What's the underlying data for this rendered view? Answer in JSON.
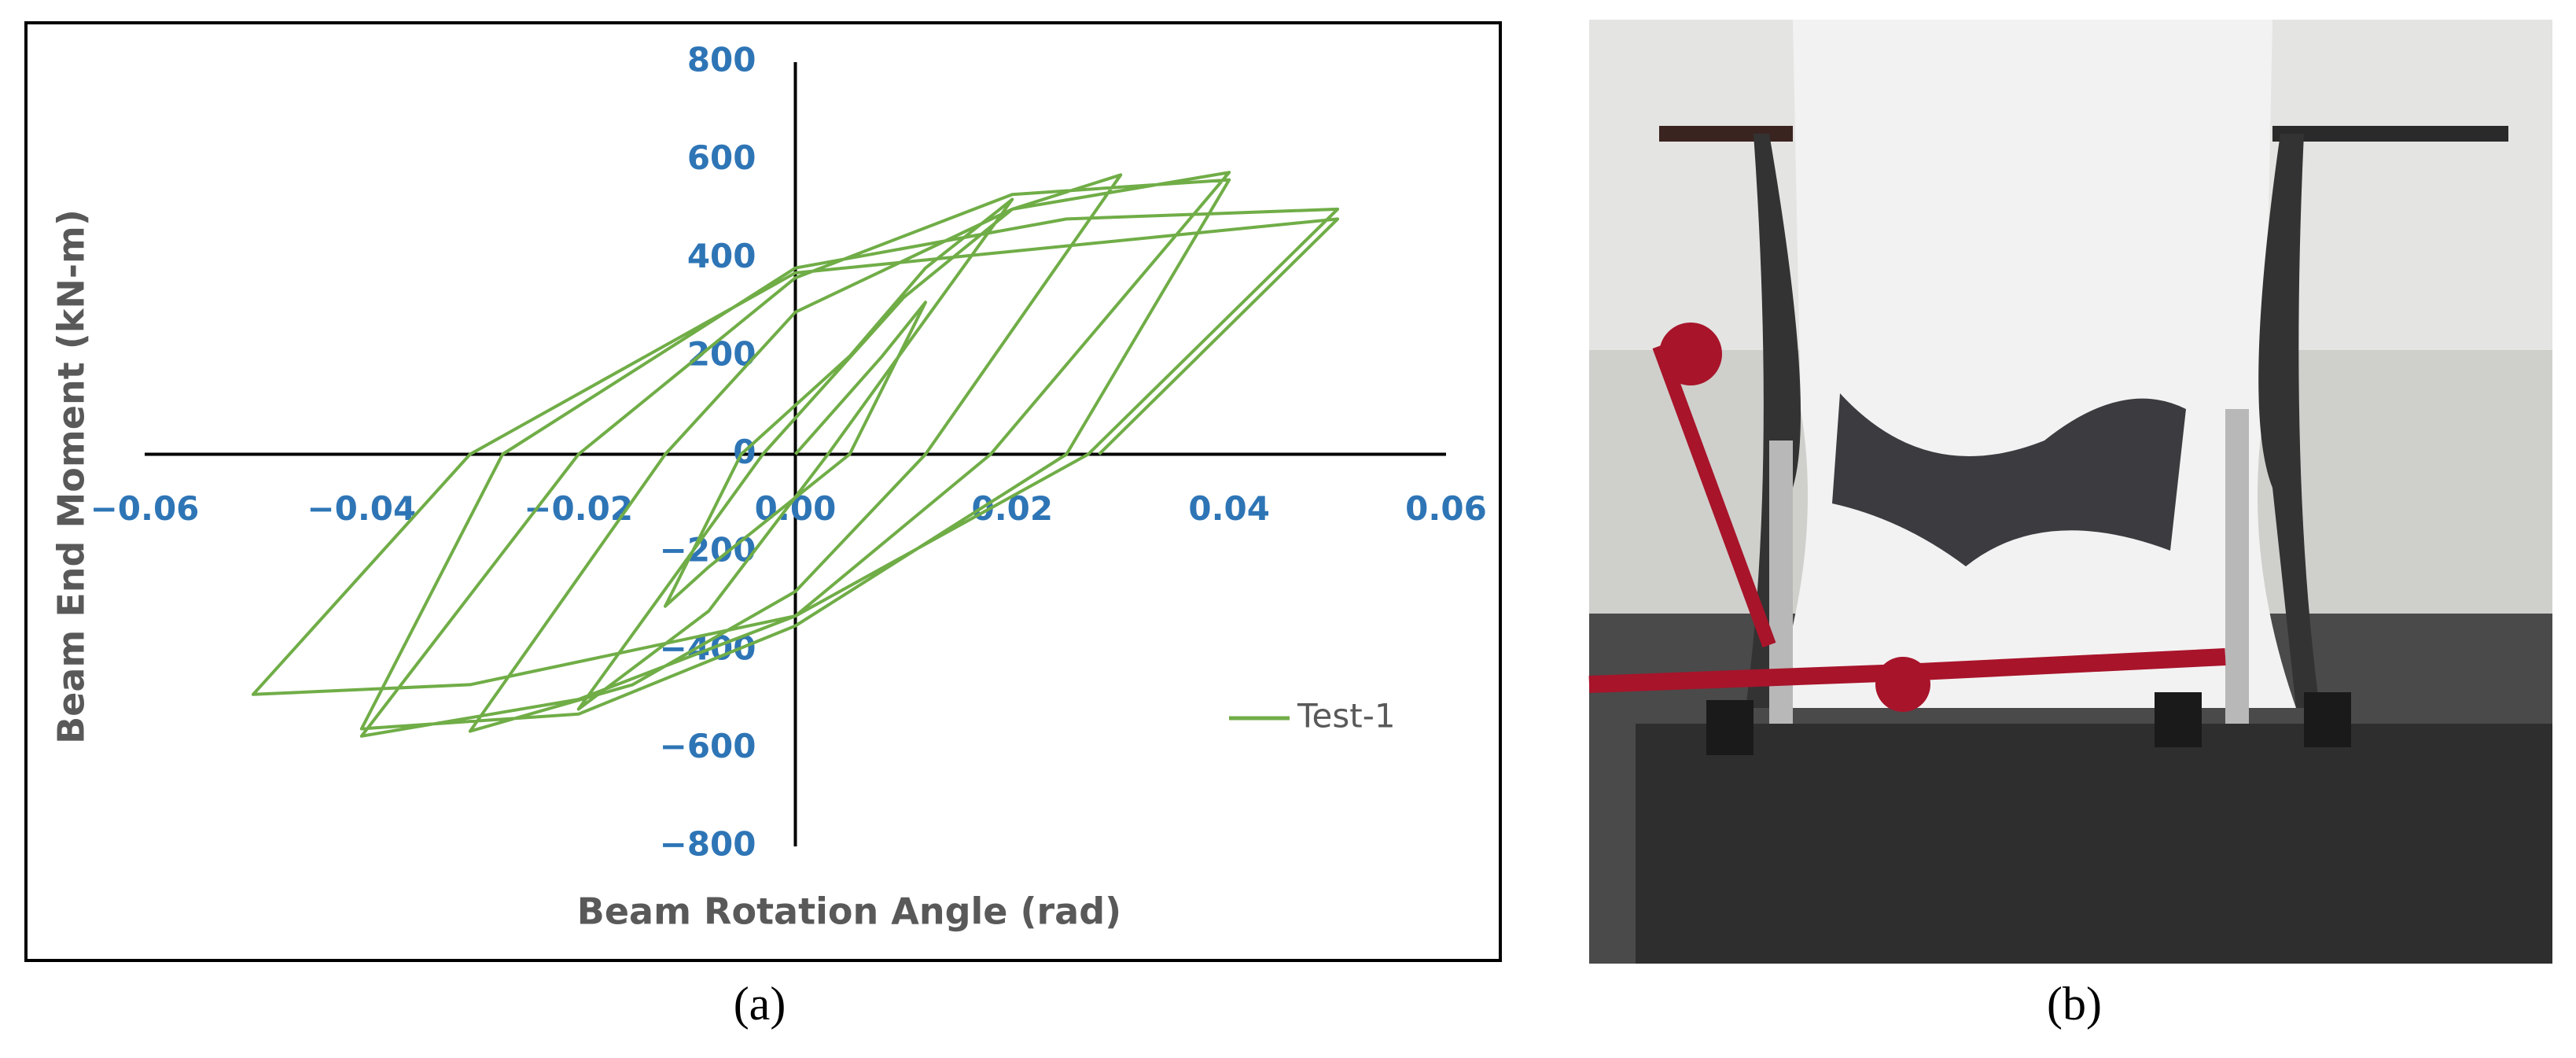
{
  "chart_data": {
    "type": "line",
    "x_label": "Beam Rotation Angle (rad)",
    "y_label": "Beam End Moment (kN-m)",
    "caption": "(a)",
    "x": [
      0,
      0.008,
      0.012,
      0.005,
      -0.008,
      -0.012,
      -0.005,
      0.005,
      0.012,
      0.02,
      0.003,
      -0.008,
      -0.02,
      -0.003,
      0.01,
      0.02,
      0.03,
      0.012,
      0,
      -0.015,
      -0.03,
      -0.012,
      0,
      0.02,
      0.04,
      0.018,
      0,
      -0.02,
      -0.04,
      -0.02,
      0,
      0.02,
      0.04,
      0.025,
      0,
      -0.02,
      -0.04,
      -0.027,
      0,
      0.025,
      0.05,
      0.027,
      0,
      -0.03,
      -0.05,
      -0.03,
      0,
      0.05,
      0.028
    ],
    "series": [
      {
        "name": "Test-1",
        "color": "#70ad47",
        "values": [
          0,
          200,
          310,
          0,
          -230,
          -310,
          0,
          200,
          380,
          520,
          0,
          -320,
          -520,
          0,
          320,
          500,
          570,
          0,
          -280,
          -470,
          -565,
          0,
          290,
          500,
          575,
          0,
          -330,
          -500,
          -575,
          0,
          360,
          530,
          560,
          0,
          -350,
          -530,
          -560,
          0,
          380,
          480,
          500,
          0,
          -330,
          -470,
          -490,
          0,
          370,
          480,
          0
        ]
      }
    ],
    "xlim": [
      -0.06,
      0.06
    ],
    "xticks": [
      {
        "value": -0.06,
        "label": "−0.06"
      },
      {
        "value": -0.04,
        "label": "−0.04"
      },
      {
        "value": -0.02,
        "label": "−0.02"
      },
      {
        "value": 0,
        "label": "0.00"
      },
      0.02,
      0.04,
      0.06
    ],
    "ylim": [
      -800,
      800
    ],
    "yticks": [
      {
        "value": -800,
        "label": "−800"
      },
      {
        "value": -600,
        "label": "−600"
      },
      {
        "value": -400,
        "label": "−400"
      },
      {
        "value": -200,
        "label": "−200"
      },
      0,
      200,
      400,
      600,
      800
    ],
    "grid": false,
    "legend": "right"
  },
  "photo": {
    "caption": "(b)"
  }
}
